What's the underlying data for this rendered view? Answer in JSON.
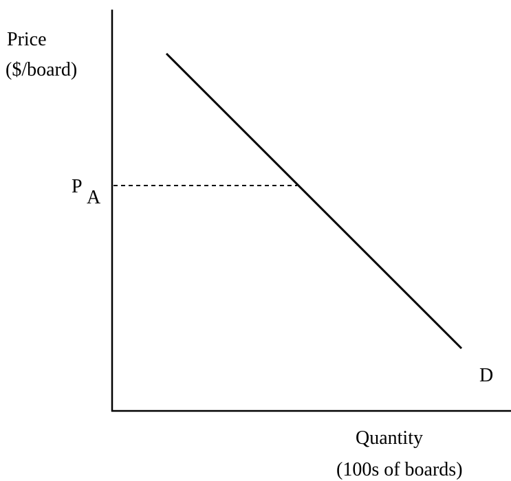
{
  "axes": {
    "y_label": [
      "Price",
      "($/board)"
    ],
    "x_label": [
      "Quantity",
      "(100s of boards)"
    ]
  },
  "price_marker": {
    "symbol": "P",
    "subscript": "A"
  },
  "curve": {
    "label": "D"
  }
}
